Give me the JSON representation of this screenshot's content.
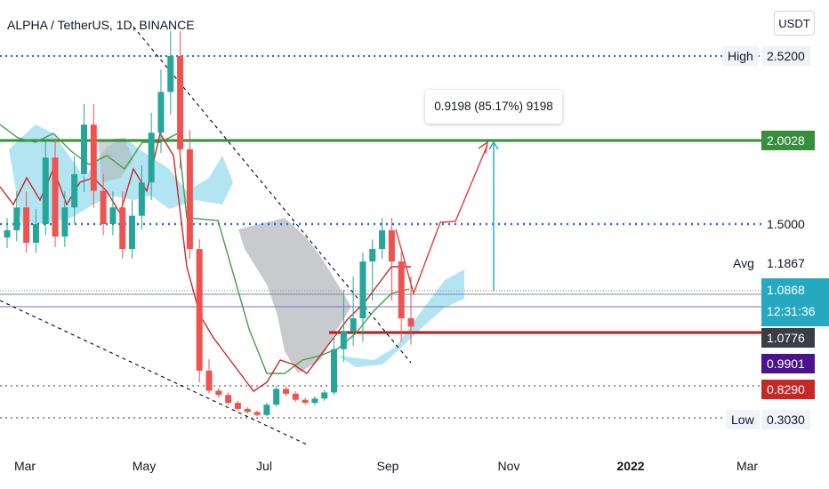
{
  "header": {
    "title": "ALPHA / TetherUS, 1D, BINANCE",
    "currency": "USDT"
  },
  "measure": {
    "label": "0.9198 (85.17%) 9198"
  },
  "price_levels": {
    "high": {
      "label": "High",
      "value": "2.5200"
    },
    "target": {
      "value": "2.0028",
      "color": "#388e3c"
    },
    "resistance": {
      "value": "1.5000"
    },
    "avg": {
      "label": "Avg",
      "value": "1.1867"
    },
    "current": {
      "value": "1.0868",
      "countdown": "12:31:36",
      "color": "#26a9c0"
    },
    "support": {
      "value": "1.0776",
      "color": "#b71c1c"
    },
    "purple": {
      "value": "0.9901",
      "color": "#4a148c"
    },
    "red": {
      "value": "0.8290",
      "color": "#c62828"
    },
    "low": {
      "label": "Low",
      "value": "0.3030"
    }
  },
  "x_axis": {
    "months": [
      "Mar",
      "May",
      "Jul",
      "Sep",
      "Nov",
      "2022",
      "Mar"
    ]
  },
  "chart_data": {
    "type": "candlestick",
    "title": "ALPHA / TetherUS, 1D, BINANCE",
    "symbol": "ALPHA/USDT",
    "interval": "1D",
    "exchange": "BINANCE",
    "currency": "USDT",
    "x_ticks": [
      "Mar",
      "May",
      "Jul",
      "Sep",
      "Nov",
      "2022",
      "Mar"
    ],
    "y_ticks": [
      "2.5200",
      "2.0028",
      "1.5000",
      "1.1867",
      "1.0868",
      "1.0776",
      "0.9901",
      "0.8290",
      "0.3030"
    ],
    "stats": {
      "high": 2.52,
      "low": 0.303,
      "avg": 1.1867,
      "last": 1.0868
    },
    "horizontal_levels": [
      2.52,
      2.0028,
      1.5,
      1.1867,
      1.0868,
      1.0776,
      0.9901,
      0.829,
      0.303
    ],
    "measurement": {
      "delta": 0.9198,
      "percent": 85.17,
      "ticks": 9198
    },
    "series": [
      {
        "name": "close",
        "values": [
          1.45,
          1.6,
          1.35,
          1.5,
          1.9,
          1.4,
          1.6,
          1.8,
          2.1,
          1.7,
          1.5,
          1.6,
          1.3,
          1.55,
          1.75,
          2.05,
          2.3,
          2.52,
          1.95,
          1.3,
          0.9,
          0.75,
          0.68,
          0.55,
          0.45,
          0.4,
          0.35,
          0.52,
          0.78,
          0.7,
          0.6,
          0.55,
          0.62,
          0.72,
          1.0,
          1.08,
          1.1,
          1.2,
          1.3,
          1.45,
          1.2,
          1.1,
          1.0868
        ]
      }
    ]
  }
}
